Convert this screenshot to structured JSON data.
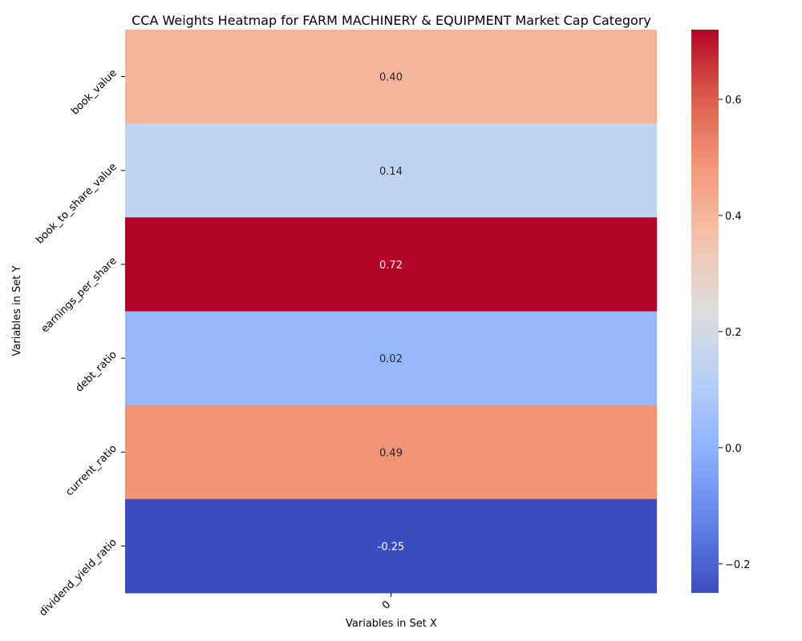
{
  "chart_data": {
    "type": "heatmap",
    "title": "CCA Weights Heatmap for FARM MACHINERY & EQUIPMENT Market Cap Category",
    "xlabel": "Variables in Set X",
    "ylabel": "Variables in Set Y",
    "x_categories": [
      "0"
    ],
    "y_categories": [
      "book_value",
      "book_to_share_value",
      "earnings_per_share",
      "debt_ratio",
      "current_ratio",
      "dividend_yield_ratio"
    ],
    "values": [
      0.4,
      0.14,
      0.72,
      0.02,
      0.49,
      -0.25
    ],
    "value_labels": [
      "0.40",
      "0.14",
      "0.72",
      "0.02",
      "0.49",
      "-0.25"
    ],
    "colormap": "coolwarm",
    "vmin": -0.25,
    "vmax": 0.72,
    "colorbar_ticks": [
      -0.2,
      0.0,
      0.2,
      0.4,
      0.6
    ],
    "colorbar_tick_labels": [
      "−0.2",
      "0.0",
      "0.2",
      "0.4",
      "0.6"
    ]
  }
}
